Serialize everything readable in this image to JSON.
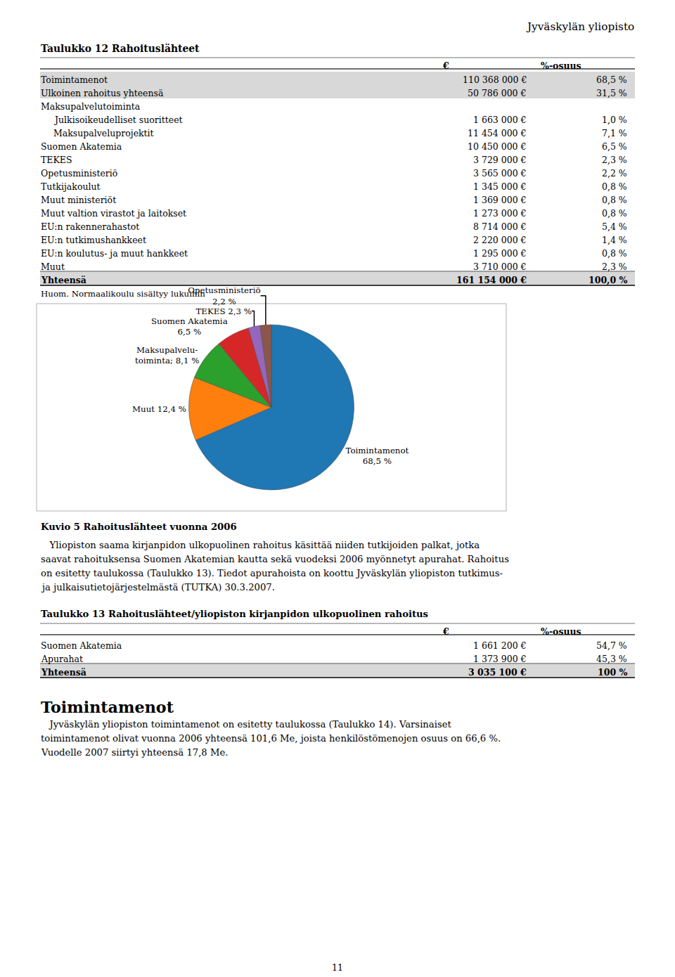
{
  "chart_data": {
    "type": "pie",
    "title": "Kuvio 5 Rahoituslähteet vuonna 2006",
    "categories": [
      "Toimintamenot\n68,5 %",
      "Muut 12,4 %",
      "Maksupalvelu-\ntoiminta; 8,1 %",
      "Suomen Akatemia\n6,5 %",
      "TEKES 2,3 %",
      "Opetusministeriö\n2,2 %"
    ],
    "values": [
      68.5,
      12.4,
      8.1,
      6.5,
      2.3,
      2.2
    ]
  },
  "page": {
    "header": "Jyväskylän yliopisto",
    "tables": [
      {
        "title": "Taulukko 12 Rahoituslähteet",
        "headers": [
          "€",
          "%-osuus"
        ],
        "rows": [
          {
            "label": "Toimintamenot",
            "value": "110 368 000 €",
            "pct": "68,5 %",
            "indent": 0,
            "bold": false,
            "shaded": true
          },
          {
            "label": "Ulkoinen rahoitus yhteensä",
            "value": "50 786 000 €",
            "pct": "31,5 %",
            "indent": 0,
            "bold": false,
            "shaded": true
          },
          {
            "label": "Maksupalvelutoiminta",
            "indent": 0,
            "bold": false,
            "shaded": false
          },
          {
            "label": "Julkisoikeudelliset suoritteet",
            "value": "1 663 000 €",
            "pct": "1,0 %",
            "indent": 1,
            "bold": false,
            "shaded": false
          },
          {
            "label": "Maksupalveluprojektit",
            "value": "11 454 000 €",
            "pct": "7,1 %",
            "indent": 1,
            "bold": false,
            "shaded": false
          },
          {
            "label": "Suomen Akatemia",
            "value": "10 450 000 €",
            "pct": "6,5 %",
            "indent": 0,
            "bold": false,
            "shaded": false
          },
          {
            "label": "TEKES",
            "value": "3 729 000 €",
            "pct": "2,3 %",
            "indent": 0,
            "bold": false,
            "shaded": false
          },
          {
            "label": "Opetusministeriö",
            "value": "3 565 000 €",
            "pct": "2,2 %",
            "indent": 0,
            "bold": false,
            "shaded": false
          },
          {
            "label": "Tutkijakoulut",
            "value": "1 345 000 €",
            "pct": "0,8 %",
            "indent": 0,
            "bold": false,
            "shaded": false
          },
          {
            "label": "Muut ministeriöt",
            "value": "1 369 000 €",
            "pct": "0,8 %",
            "indent": 0,
            "bold": false,
            "shaded": false
          },
          {
            "label": "Muut valtion virastot ja laitokset",
            "value": "1 273 000 €",
            "pct": "0,8 %",
            "indent": 0,
            "bold": false,
            "shaded": false
          },
          {
            "label": "EU:n rakennerahastot",
            "value": "8 714 000 €",
            "pct": "5,4 %",
            "indent": 0,
            "bold": false,
            "shaded": false
          },
          {
            "label": "EU:n tutkimushankkeet",
            "value": "2 220 000 €",
            "pct": "1,4 %",
            "indent": 0,
            "bold": false,
            "shaded": false
          },
          {
            "label": "EU:n koulutus- ja muut hankkeet",
            "value": "1 295 000 €",
            "pct": "0,8 %",
            "indent": 0,
            "bold": false,
            "shaded": false
          },
          {
            "label": "Muut",
            "value": "3 710 000 €",
            "pct": "2,3 %",
            "indent": 0,
            "bold": false,
            "shaded": false
          },
          {
            "label": "Yhteensä",
            "value": "161 154 000 €",
            "pct": "100,0 %",
            "indent": 0,
            "bold": true,
            "shaded": true
          }
        ],
        "note": "Huom. Normaalikoulu sisältyy lukuihin"
      },
      {
        "title": "Taulukko 13 Rahoituslähteet/yliopiston kirjanpidon ulkopuolinen rahoitus",
        "headers": [
          "€",
          "%-osuus"
        ],
        "rows": [
          {
            "label": "Suomen Akatemia",
            "value": "1 661 200 €",
            "pct": "54,7 %",
            "indent": 0,
            "bold": false,
            "shaded": false
          },
          {
            "label": "Apurahat",
            "value": "1 373 900 €",
            "pct": "45,3 %",
            "indent": 0,
            "bold": false,
            "shaded": false
          },
          {
            "label": "Yhteensä",
            "value": "3 035 100 €",
            "pct": "100 %",
            "indent": 0,
            "bold": true,
            "shaded": true
          }
        ]
      }
    ],
    "body_text": [
      "   Yliopiston saama kirjanpidon ulkopuolinen rahoitus käsittää niiden tutkijoiden palkat, jotka",
      "saavat rahoituksensa Suomen Akatemian kautta sekä vuodeksi 2006 myönnetyt apurahat. Rahoitus",
      "on esitetty taulukossa (Taulukko 13). Tiedot apurahoista on koottu Jyväskylän yliopiston tutkimus-",
      "ja julkaisutietojärjestelmästä (TUTKA) 30.3.2007."
    ],
    "section_title": "Toimintamenot",
    "section_text": [
      "   Jyväskylän yliopiston toimintamenot on esitetty taulukossa (Taulukko 14). Varsinaiset",
      "toimintamenot olivat vuonna 2006 yhteensä 101,6 Me, joista henkilöstömenojen osuus on 66,6 %.",
      "Vuodelle 2007 siirtyi yhteensä 17,8 Me."
    ],
    "page_number": "11"
  }
}
